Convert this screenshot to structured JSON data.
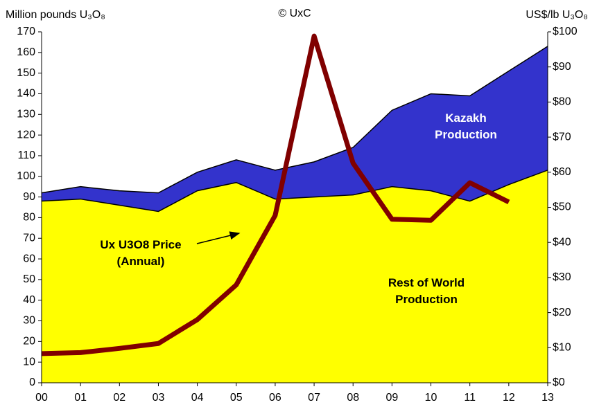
{
  "chart_data": {
    "type": "stacked_area_line",
    "y_label": "Million pounds U₃O₈",
    "y2_label": "US$/lb U₃O₈",
    "source": "© UxC",
    "categories": [
      "00",
      "01",
      "02",
      "03",
      "04",
      "05",
      "06",
      "07",
      "08",
      "09",
      "10",
      "11",
      "12",
      "13"
    ],
    "series": [
      {
        "name": "Rest of World Production",
        "color": "#ffff00",
        "values": [
          88,
          89,
          86,
          83,
          93,
          97,
          89,
          90,
          91,
          95,
          93,
          88,
          96,
          103
        ]
      },
      {
        "name": "Kazakh Production",
        "color": "#3333cc",
        "values": [
          4,
          6,
          7,
          9,
          9,
          11,
          14,
          17,
          23,
          37,
          47,
          51,
          55,
          60
        ]
      },
      {
        "name": "Ux U3O8 Price (Annual)",
        "color": "#800000",
        "axis": "y2",
        "values": [
          8.3,
          8.6,
          9.8,
          11.2,
          18.0,
          27.9,
          47.7,
          98.8,
          62.6,
          46.6,
          46.3,
          57.0,
          51.5,
          null
        ]
      }
    ],
    "annotations": [
      {
        "lines": [
          "Kazakh",
          "Production"
        ],
        "color": "#ffffff"
      },
      {
        "lines": [
          "Rest of World",
          "Production"
        ],
        "color": "#000000"
      },
      {
        "lines": [
          "Ux U3O8 Price",
          "(Annual)"
        ],
        "color": "#000000"
      }
    ],
    "ylim": [
      0,
      170
    ],
    "yticks": [
      0,
      10,
      20,
      30,
      40,
      50,
      60,
      70,
      80,
      90,
      100,
      110,
      120,
      130,
      140,
      150,
      160,
      170
    ],
    "y2lim": [
      0,
      100
    ],
    "y2ticks": [
      {
        "value": 0,
        "label": "$0"
      },
      {
        "value": 10,
        "label": "$10"
      },
      {
        "value": 20,
        "label": "$20"
      },
      {
        "value": 30,
        "label": "$30"
      },
      {
        "value": 40,
        "label": "$40"
      },
      {
        "value": 50,
        "label": "$50"
      },
      {
        "value": 60,
        "label": "$60"
      },
      {
        "value": 70,
        "label": "$70"
      },
      {
        "value": 80,
        "label": "$80"
      },
      {
        "value": 90,
        "label": "$90"
      },
      {
        "value": 100,
        "label": "$100"
      }
    ]
  }
}
